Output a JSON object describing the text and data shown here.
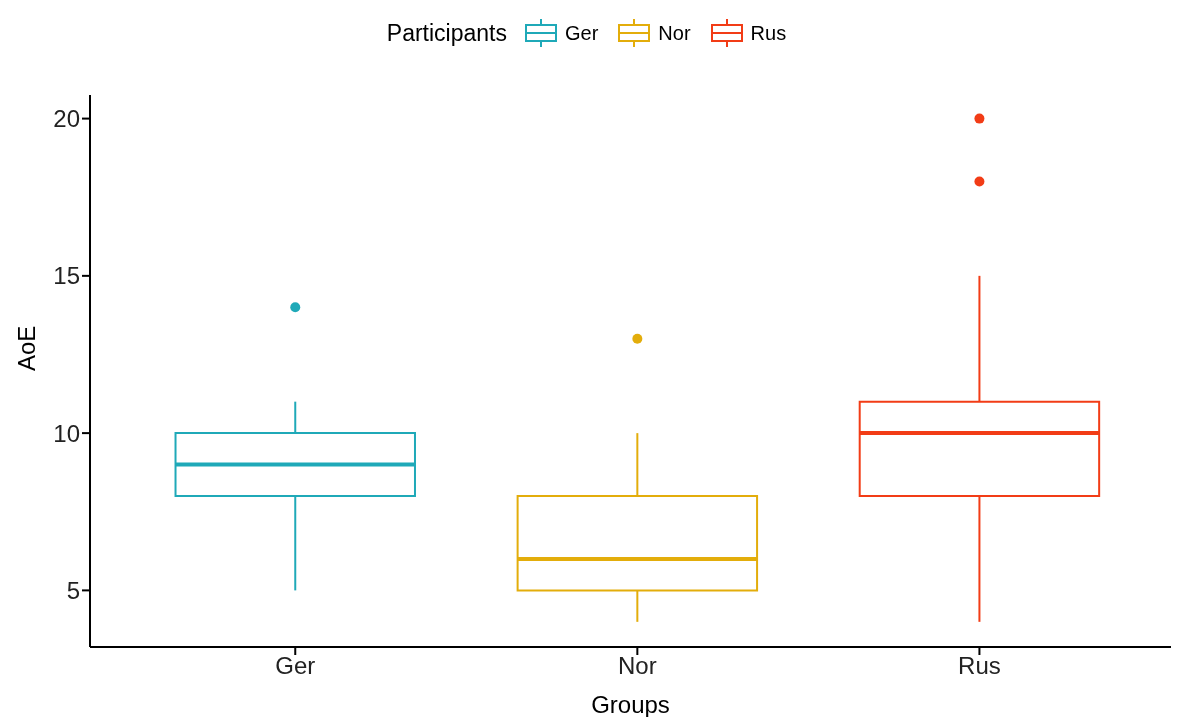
{
  "chart_data": {
    "type": "box",
    "xlabel": "Groups",
    "ylabel": "AoE",
    "legend_title": "Participants",
    "legend": "top",
    "categories": [
      "Ger",
      "Nor",
      "Rus"
    ],
    "series": [
      {
        "name": "Ger",
        "color": "#1fa9b8",
        "boxes": [
          {
            "low": 5,
            "q1": 8,
            "median": 9,
            "q3": 10,
            "high": 11,
            "outliers": [
              14
            ]
          },
          null,
          null
        ]
      },
      {
        "name": "Nor",
        "color": "#e3ad0b",
        "boxes": [
          null,
          {
            "low": 4,
            "q1": 5,
            "median": 6,
            "q3": 8,
            "high": 10,
            "outliers": [
              13
            ]
          },
          null
        ]
      },
      {
        "name": "Rus",
        "color": "#f23c16",
        "boxes": [
          null,
          null,
          {
            "low": 4,
            "q1": 8,
            "median": 10,
            "q3": 11,
            "high": 15,
            "outliers": [
              18,
              20
            ]
          }
        ]
      }
    ],
    "ylim": [
      3.2,
      20.75
    ],
    "yticks": [
      5,
      10,
      15,
      20
    ],
    "grid": false
  }
}
